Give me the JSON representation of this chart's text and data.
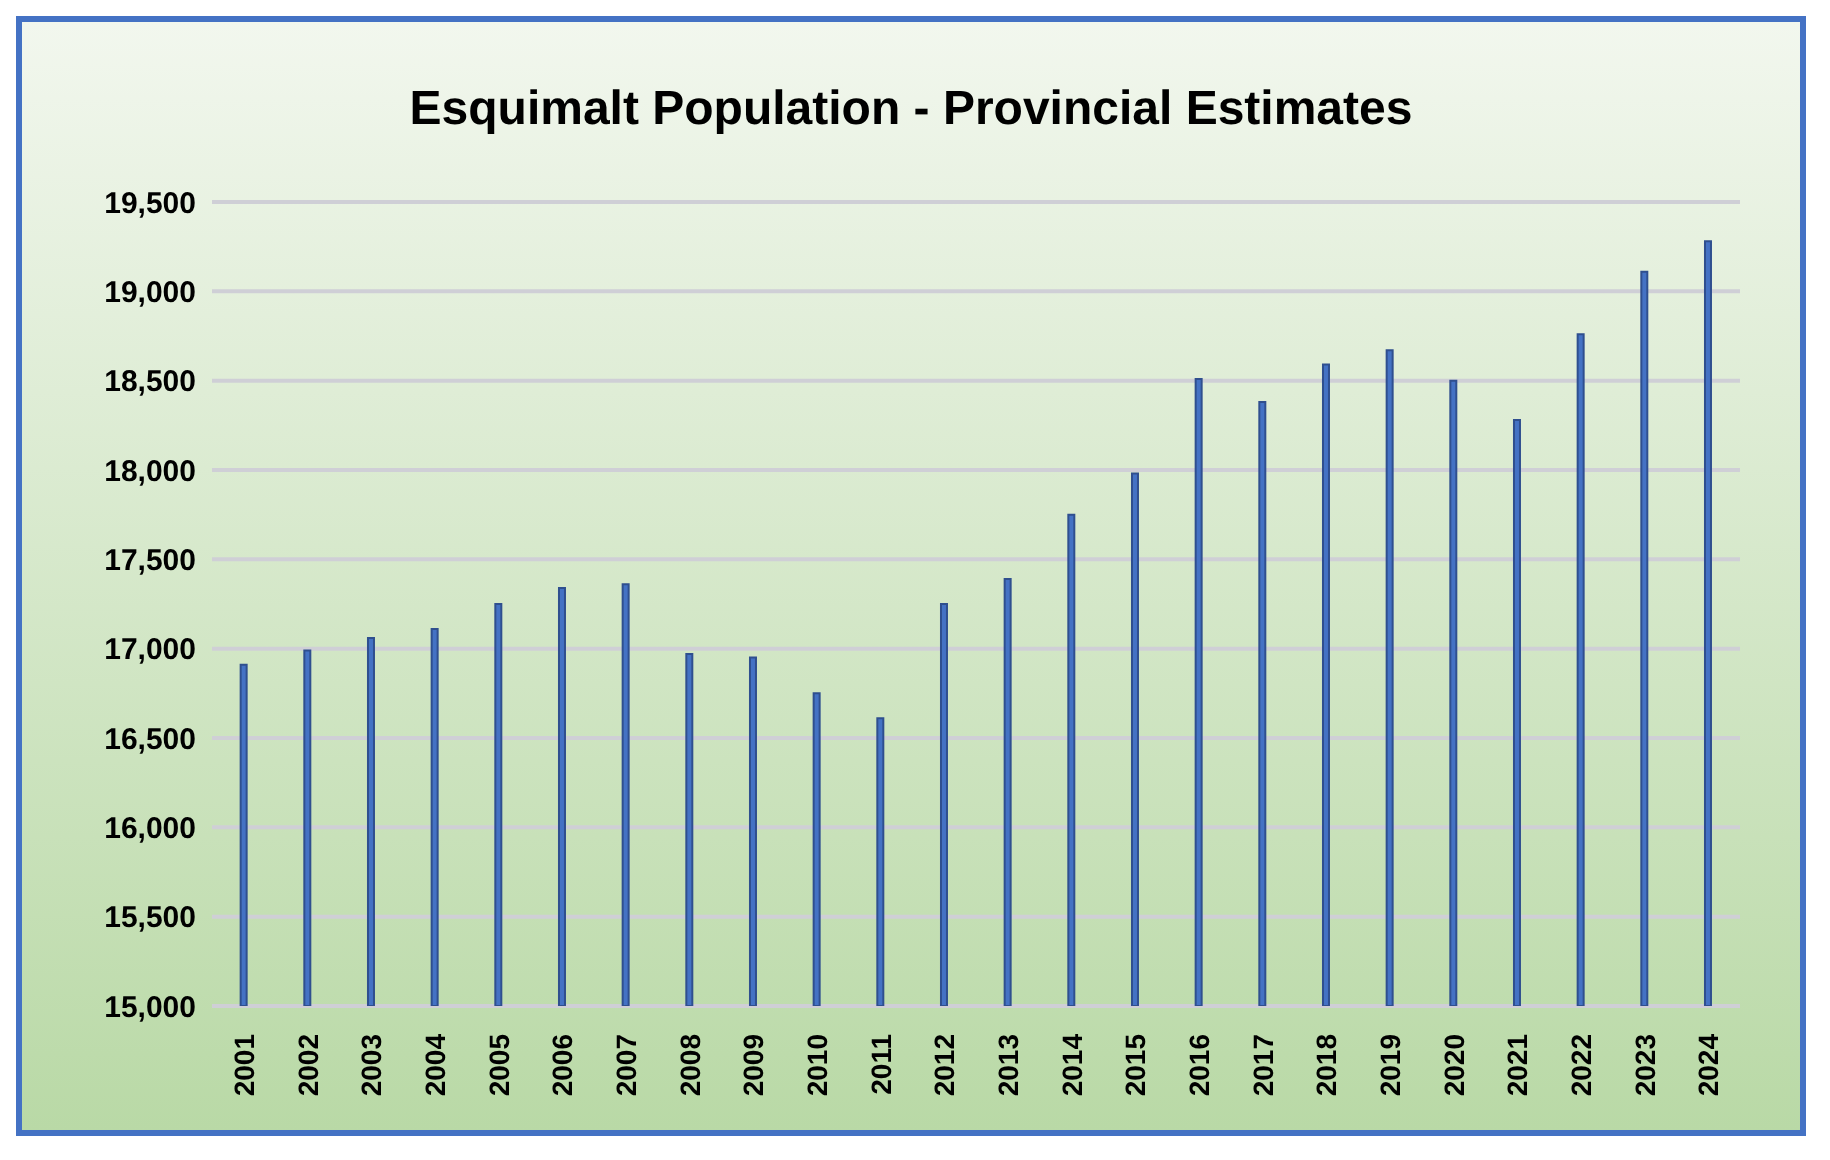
{
  "chart_data": {
    "type": "bar",
    "title": "Esquimalt Population - Provincial  Estimates",
    "categories": [
      "2001",
      "2002",
      "2003",
      "2004",
      "2005",
      "2006",
      "2007",
      "2008",
      "2009",
      "2010",
      "2011",
      "2012",
      "2013",
      "2014",
      "2015",
      "2016",
      "2017",
      "2018",
      "2019",
      "2020",
      "2021",
      "2022",
      "2023",
      "2024"
    ],
    "values": [
      16910,
      16990,
      17060,
      17110,
      17250,
      17340,
      17360,
      16970,
      16950,
      16750,
      16610,
      17250,
      17390,
      17750,
      17980,
      18510,
      18380,
      18590,
      18670,
      18500,
      18280,
      18760,
      19110,
      19280
    ],
    "color": "#4472c4",
    "ylim": [
      15000,
      19500
    ],
    "yticks": [
      {
        "value": 15000,
        "label": "15,000"
      },
      {
        "value": 15500,
        "label": "15,500"
      },
      {
        "value": 16000,
        "label": "16,000"
      },
      {
        "value": 16500,
        "label": "16,500"
      },
      {
        "value": 17000,
        "label": "17,000"
      },
      {
        "value": 17500,
        "label": "17,500"
      },
      {
        "value": 18000,
        "label": "18,000"
      },
      {
        "value": 18500,
        "label": "18,500"
      },
      {
        "value": 19000,
        "label": "19,000"
      },
      {
        "value": 19500,
        "label": "19,500"
      }
    ],
    "grid": "y"
  }
}
